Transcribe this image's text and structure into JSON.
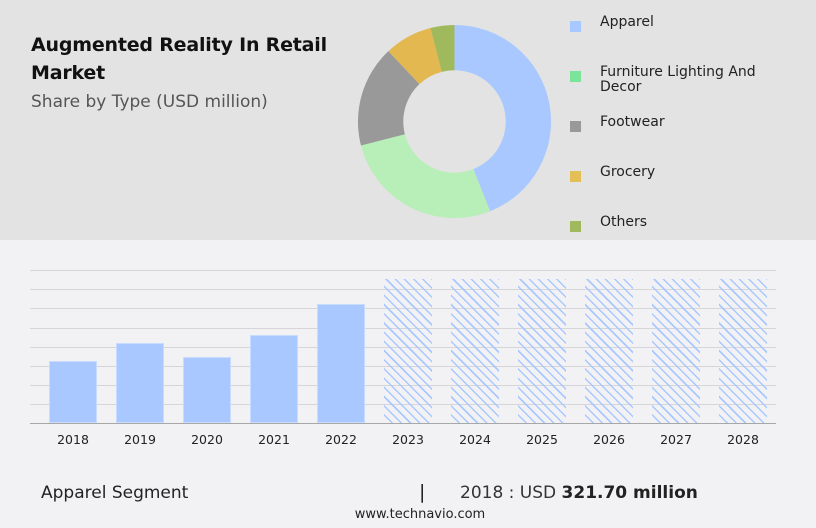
{
  "header": {
    "title_line1": "Augmented Reality In Retail",
    "title_line2": "Market",
    "subtitle": "Share by Type (USD million)"
  },
  "legend": [
    {
      "label": "Apparel",
      "color": "#a8c8ff"
    },
    {
      "label": "Furniture Lighting And Decor",
      "color": "#7be39a"
    },
    {
      "label": "Footwear",
      "color": "#999999"
    },
    {
      "label": "Grocery",
      "color": "#e3bf55"
    },
    {
      "label": "Others",
      "color": "#a0b95c"
    }
  ],
  "footer": {
    "segment": "Apparel Segment",
    "separator": "|",
    "value_prefix": "2018 : USD",
    "value_bold": "321.70 million",
    "url": "www.technavio.com"
  },
  "chart_data": [
    {
      "type": "pie",
      "title": "Augmented Reality In Retail Market - Share by Type (USD million)",
      "donut": true,
      "categories": [
        "Apparel",
        "Furniture Lighting And Decor",
        "Footwear",
        "Grocery",
        "Others"
      ],
      "values": [
        44,
        27,
        17,
        8,
        4
      ],
      "colors": [
        "#a8c8ff",
        "#b8eeb8",
        "#999999",
        "#e3b850",
        "#a0b95c"
      ],
      "legend_position": "right"
    },
    {
      "type": "bar",
      "title": "Apparel Segment",
      "categories": [
        "2018",
        "2019",
        "2020",
        "2021",
        "2022",
        "2023",
        "2024",
        "2025",
        "2026",
        "2027",
        "2028"
      ],
      "values": [
        321.7,
        415,
        343,
        457,
        617,
        null,
        null,
        null,
        null,
        null,
        null
      ],
      "forecast_years": [
        "2023",
        "2024",
        "2025",
        "2026",
        "2027",
        "2028"
      ],
      "xlabel": "",
      "ylabel": "",
      "grid": true,
      "annotation": "2018 : USD 321.70 million"
    }
  ]
}
